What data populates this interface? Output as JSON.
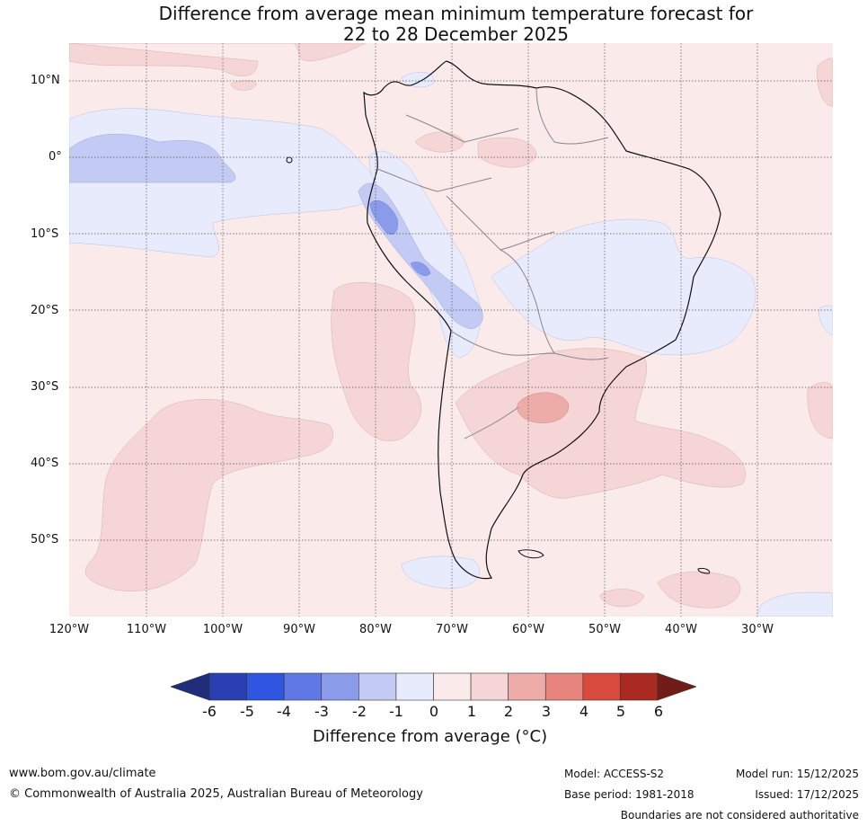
{
  "title": {
    "line1": "Difference from average mean minimum temperature forecast for",
    "line2": "22 to 28 December 2025"
  },
  "map": {
    "lat_labels": [
      "10°N",
      "0°",
      "10°S",
      "20°S",
      "30°S",
      "40°S",
      "50°S"
    ],
    "lon_labels": [
      "120°W",
      "110°W",
      "100°W",
      "90°W",
      "80°W",
      "70°W",
      "60°W",
      "50°W",
      "40°W",
      "30°W"
    ]
  },
  "colorbar": {
    "ticks": [
      "-6",
      "-5",
      "-4",
      "-3",
      "-2",
      "-1",
      "0",
      "1",
      "2",
      "3",
      "4",
      "5",
      "6"
    ],
    "colors": [
      "#1f2d7a",
      "#2a40b2",
      "#3055e0",
      "#5f78e6",
      "#8a9be9",
      "#c3caf4",
      "#e8ebfb",
      "#fbeaea",
      "#f5d5d5",
      "#edaca8",
      "#e8847e",
      "#d94a3e",
      "#aa2a22",
      "#721c18"
    ],
    "label": "Difference from average (°C)"
  },
  "footer": {
    "website": "www.bom.gov.au/climate",
    "copyright": "© Commonwealth of Australia 2025, Australian Bureau of Meteorology",
    "model": "Model: ACCESS-S2",
    "base_period": "Base period: 1981-2018",
    "model_run": "Model run: 15/12/2025",
    "issued": "Issued: 17/12/2025",
    "disclaimer": "Boundaries are not considered authoritative"
  }
}
